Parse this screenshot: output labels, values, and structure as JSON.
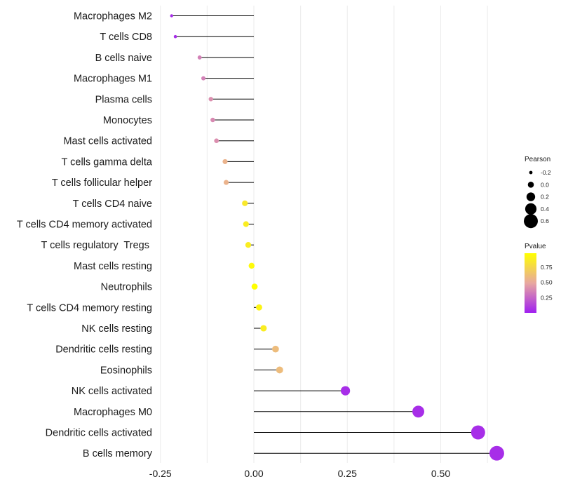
{
  "chart_data": {
    "type": "lollipop",
    "title": "",
    "xlabel": "",
    "ylabel": "",
    "xlim": [
      -0.3,
      0.8
    ],
    "xticks": [
      -0.25,
      0.0,
      0.25,
      0.5
    ],
    "xtick_labels": [
      "-0.25",
      "0.00",
      "0.25",
      "0.50"
    ],
    "grid": true,
    "categories": [
      "Macrophages M2",
      "T cells CD8",
      "B cells naive",
      "Macrophages M1",
      "Plasma cells",
      "Monocytes",
      "Mast cells activated",
      "T cells gamma delta",
      "T cells follicular helper",
      "T cells CD4 naive",
      "T cells CD4 memory activated",
      "T cells regulatory  Tregs ",
      "Mast cells resting",
      "Neutrophils",
      "T cells CD4 memory resting",
      "NK cells resting",
      "Dendritic cells resting",
      "Eosinophils",
      "NK cells activated",
      "Macrophages M0",
      "Dendritic cells activated",
      "B cells memory"
    ],
    "pearson": [
      -0.22,
      -0.21,
      -0.145,
      -0.135,
      -0.115,
      -0.11,
      -0.1,
      -0.077,
      -0.074,
      -0.024,
      -0.021,
      -0.015,
      -0.006,
      0.002,
      0.014,
      0.026,
      0.058,
      0.069,
      0.245,
      0.44,
      0.6,
      0.65
    ],
    "pvalue": [
      0.05,
      0.05,
      0.35,
      0.35,
      0.4,
      0.38,
      0.4,
      0.55,
      0.55,
      0.85,
      0.88,
      0.88,
      0.95,
      0.98,
      0.92,
      0.88,
      0.6,
      0.6,
      0.05,
      0.05,
      0.05,
      0.05
    ],
    "legend_size": {
      "title": "Pearson",
      "values": [
        -0.2,
        0.0,
        0.2,
        0.4,
        0.6
      ],
      "labels": [
        "-0.2",
        "0.0",
        "0.2",
        "0.4",
        "0.6"
      ]
    },
    "legend_color": {
      "title": "Pvalue",
      "ticks": [
        0.75,
        0.5,
        0.25
      ],
      "labels": [
        "0.75",
        "0.50",
        "0.25"
      ],
      "range": [
        0.0,
        0.98
      ],
      "low_color": "#a020f0",
      "mid_color": "#e8a8a0",
      "high_color": "#ffff00"
    },
    "legend_position": "right"
  }
}
